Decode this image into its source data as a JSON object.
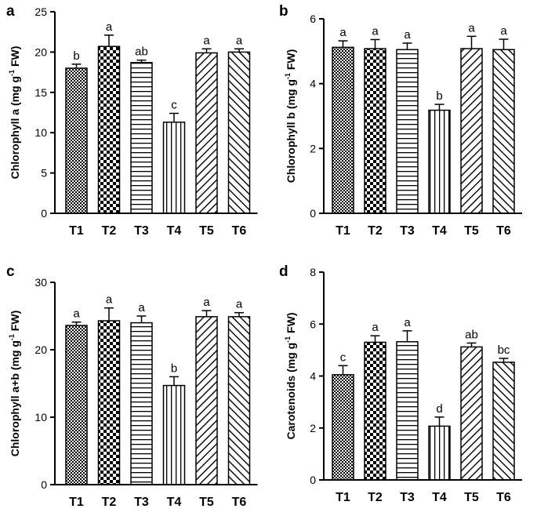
{
  "figure": {
    "panels": [
      {
        "label": "a"
      },
      {
        "label": "b"
      },
      {
        "label": "c"
      },
      {
        "label": "d"
      }
    ]
  },
  "chart_data": [
    {
      "panel": "a",
      "type": "bar",
      "categories": [
        "T1",
        "T2",
        "T3",
        "T4",
        "T5",
        "T6"
      ],
      "values": [
        18.0,
        20.7,
        18.7,
        11.3,
        19.9,
        20.0
      ],
      "errors": [
        0.5,
        1.4,
        0.3,
        1.1,
        0.5,
        0.4
      ],
      "significance": [
        "b",
        "a",
        "ab",
        "c",
        "a",
        "a"
      ],
      "patterns": [
        "check-small",
        "check-large",
        "hlines",
        "vlines",
        "diag-down",
        "diag-up"
      ],
      "ylabel": {
        "main": "Chlorophyll a (mg g",
        "sup": "-1",
        "suffix": " FW)"
      },
      "ylim": [
        0,
        25
      ],
      "yticks": [
        0,
        5,
        10,
        15,
        20,
        25
      ]
    },
    {
      "panel": "b",
      "type": "bar",
      "categories": [
        "T1",
        "T2",
        "T3",
        "T4",
        "T5",
        "T6"
      ],
      "values": [
        5.12,
        5.08,
        5.05,
        3.18,
        5.08,
        5.05
      ],
      "errors": [
        0.2,
        0.28,
        0.2,
        0.18,
        0.38,
        0.32
      ],
      "significance": [
        "a",
        "a",
        "a",
        "b",
        "a",
        "a"
      ],
      "patterns": [
        "check-small",
        "check-large",
        "hlines",
        "vlines",
        "diag-down",
        "diag-up"
      ],
      "ylabel": {
        "main": "Chlorophyll b (mg g",
        "sup": "-1",
        "suffix": " FW)"
      },
      "ylim": [
        0,
        6
      ],
      "yticks": [
        0,
        2,
        4,
        6
      ]
    },
    {
      "panel": "c",
      "type": "bar",
      "categories": [
        "T1",
        "T2",
        "T3",
        "T4",
        "T5",
        "T6"
      ],
      "values": [
        23.6,
        24.3,
        24.0,
        14.7,
        24.9,
        24.9
      ],
      "errors": [
        0.5,
        1.9,
        1.0,
        1.3,
        0.9,
        0.6
      ],
      "significance": [
        "a",
        "a",
        "a",
        "b",
        "a",
        "a"
      ],
      "patterns": [
        "check-small",
        "check-large",
        "hlines",
        "vlines",
        "diag-down",
        "diag-up"
      ],
      "ylabel": {
        "main": "Chlorophyll a+b (mg g",
        "sup": "-1",
        "suffix": " FW)"
      },
      "ylim": [
        0,
        30
      ],
      "yticks": [
        0,
        10,
        20,
        30
      ]
    },
    {
      "panel": "d",
      "type": "bar",
      "categories": [
        "T1",
        "T2",
        "T3",
        "T4",
        "T5",
        "T6"
      ],
      "values": [
        4.05,
        5.3,
        5.32,
        2.07,
        5.12,
        4.53
      ],
      "errors": [
        0.35,
        0.25,
        0.42,
        0.35,
        0.15,
        0.15
      ],
      "significance": [
        "c",
        "a",
        "a",
        "d",
        "ab",
        "bc"
      ],
      "patterns": [
        "check-small",
        "check-large",
        "hlines",
        "vlines",
        "diag-down",
        "diag-up"
      ],
      "ylabel": {
        "main": "Carotenoids (mg g",
        "sup": "-1",
        "suffix": " FW)"
      },
      "ylim": [
        0,
        8
      ],
      "yticks": [
        0,
        2,
        4,
        6,
        8
      ]
    }
  ]
}
